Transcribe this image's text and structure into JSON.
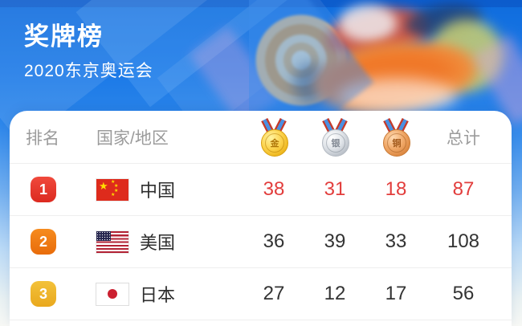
{
  "header": {
    "title": "奖牌榜",
    "subtitle": "2020东京奥运会"
  },
  "table": {
    "columns": {
      "rank": "排名",
      "country": "国家/地区",
      "gold": "金",
      "silver": "银",
      "bronze": "铜",
      "total": "总计"
    },
    "rows": [
      {
        "rank": "1",
        "country": "中国",
        "gold": "38",
        "silver": "31",
        "bronze": "18",
        "total": "87"
      },
      {
        "rank": "2",
        "country": "美国",
        "gold": "36",
        "silver": "39",
        "bronze": "33",
        "total": "108"
      },
      {
        "rank": "3",
        "country": "日本",
        "gold": "27",
        "silver": "12",
        "bronze": "17",
        "total": "56"
      }
    ]
  },
  "colors": {
    "background_blue": "#1373e4",
    "rank1_badge": "#e5322d",
    "rank2_badge": "#ee7712",
    "rank3_badge": "#efb32a",
    "highlight_number": "#e23d3c",
    "gold_medal": "#eeb820",
    "silver_medal": "#bcc2ca",
    "bronze_medal": "#dd8a44"
  }
}
